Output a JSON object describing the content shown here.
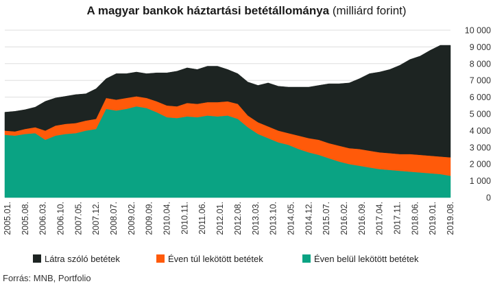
{
  "title": {
    "bold": "A magyar bankok háztartási betétállománya",
    "normal": "(milliárd forint)"
  },
  "source": "Forrás: MNB, Portfolio",
  "colors": {
    "black": "#1d2422",
    "orange": "#ff5a0a",
    "green": "#0aa383",
    "grid": "#dddddd"
  },
  "chart_data": {
    "type": "area",
    "stacked": true,
    "title": "A magyar bankok háztartási betétállománya (milliárd forint)",
    "ylim": [
      0,
      10000
    ],
    "yticks": [
      "0",
      "1 000",
      "2 000",
      "3 000",
      "4 000",
      "5 000",
      "6 000",
      "7 000",
      "8 000",
      "9 000",
      "10 000"
    ],
    "xticks": [
      "2005.01.",
      "2005.08.",
      "2006.03.",
      "2006.10.",
      "2007.05.",
      "2007.12.",
      "2008.07.",
      "2009.02.",
      "2009.09.",
      "2010.04.",
      "2010.11.",
      "2011.06.",
      "2012.01.",
      "2012.08.",
      "2013.03.",
      "2013.10.",
      "2014.05.",
      "2014.12.",
      "2015.07.",
      "2016.02.",
      "2016.09.",
      "2017.04.",
      "2017.11.",
      "2018.06.",
      "2019.01.",
      "2019.08."
    ],
    "legend_position": "bottom",
    "series": [
      {
        "name": "Éven belül lekötött betétek",
        "color": "#0aa383",
        "values": [
          3750,
          3700,
          3800,
          3850,
          3450,
          3700,
          3800,
          3850,
          4000,
          4100,
          5300,
          5200,
          5300,
          5450,
          5350,
          5100,
          4800,
          4750,
          4850,
          4800,
          4900,
          4850,
          4900,
          4700,
          4200,
          3800,
          3550,
          3300,
          3150,
          2900,
          2700,
          2550,
          2350,
          2150,
          2000,
          1900,
          1800,
          1700,
          1650,
          1600,
          1550,
          1500,
          1450,
          1400,
          1300
        ]
      },
      {
        "name": "Éven túl lekötött betétek",
        "color": "#ff5a0a",
        "values": [
          250,
          250,
          300,
          350,
          550,
          600,
          600,
          600,
          600,
          600,
          650,
          650,
          650,
          600,
          600,
          650,
          700,
          700,
          800,
          800,
          800,
          850,
          850,
          900,
          700,
          700,
          700,
          700,
          700,
          800,
          850,
          900,
          900,
          950,
          950,
          1000,
          1000,
          1000,
          1000,
          1000,
          1050,
          1050,
          1050,
          1050,
          1100
        ]
      },
      {
        "name": "Látra szóló betétek",
        "color": "#1d2422",
        "values": [
          1100,
          1200,
          1150,
          1200,
          1750,
          1650,
          1650,
          1700,
          1600,
          1800,
          1150,
          1550,
          1450,
          1450,
          1450,
          1700,
          1950,
          2100,
          2100,
          2050,
          2150,
          2150,
          1900,
          1800,
          2000,
          2200,
          2600,
          2650,
          2750,
          2900,
          3050,
          3250,
          3550,
          3700,
          3900,
          4200,
          4600,
          4800,
          5000,
          5300,
          5650,
          5900,
          6300,
          6650,
          6700
        ]
      }
    ]
  }
}
